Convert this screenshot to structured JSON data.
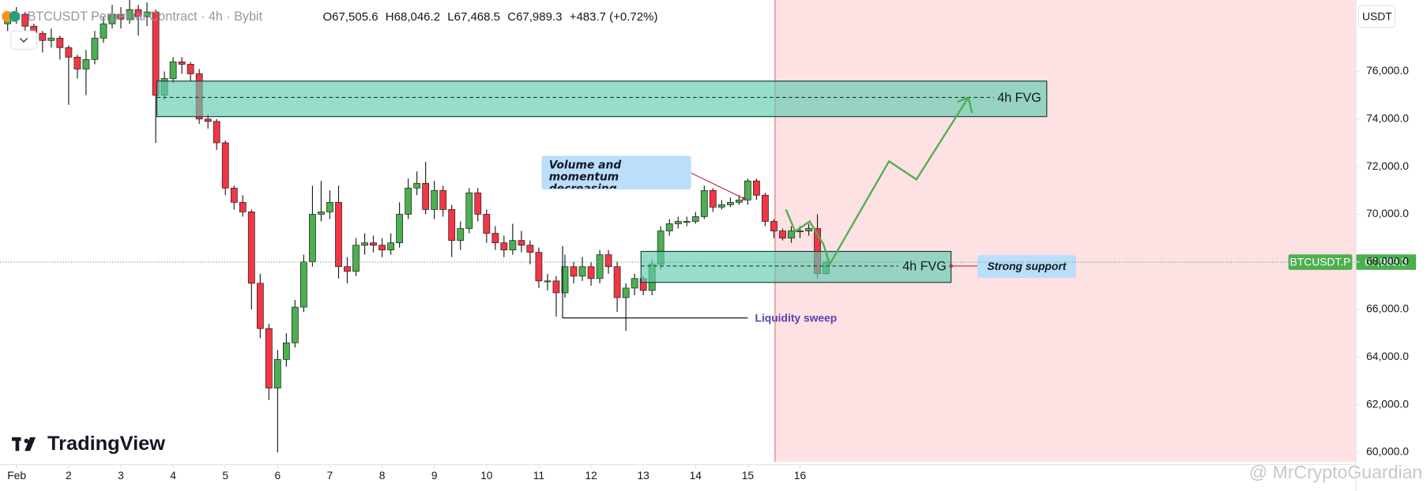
{
  "header": {
    "symbol": "BTCUSDT Perpetual Contract · 4h · Bybit",
    "ohlc": [
      {
        "key": "O",
        "value": "67,505.6"
      },
      {
        "key": "H",
        "value": "68,046.2"
      },
      {
        "key": "L",
        "value": "67,468.5"
      },
      {
        "key": "C",
        "value": "67,989.3"
      }
    ],
    "change": "+483.7 (+0.72%)",
    "currency": "USDT",
    "brand": "TradingView",
    "watermark": "@ MrCryptoGuardian"
  },
  "chart_data": {
    "type": "candlestick",
    "up_color": "#4caf50",
    "down_color": "#f23645",
    "grid": false,
    "x": [
      0.833,
      1,
      1.167,
      1.333,
      1.5,
      1.667,
      1.833,
      2,
      2.167,
      2.333,
      2.5,
      2.667,
      2.833,
      3,
      3.167,
      3.333,
      3.5,
      3.667,
      3.833,
      4,
      4.167,
      4.333,
      4.5,
      4.667,
      4.833,
      5,
      5.167,
      5.333,
      5.5,
      5.667,
      5.833,
      6,
      6.167,
      6.333,
      6.5,
      6.667,
      6.833,
      7,
      7.167,
      7.333,
      7.5,
      7.667,
      7.833,
      8,
      8.167,
      8.333,
      8.5,
      8.667,
      8.833,
      9,
      9.167,
      9.333,
      9.5,
      9.667,
      9.833,
      10,
      10.167,
      10.333,
      10.5,
      10.667,
      10.833,
      11,
      11.167,
      11.333,
      11.5,
      11.667,
      11.833,
      12,
      12.167,
      12.333,
      12.5,
      12.667,
      12.833,
      13,
      13.167,
      13.333,
      13.5,
      13.667,
      13.833,
      14,
      14.167,
      14.333,
      14.5,
      14.667,
      14.833,
      15,
      15.167,
      15.333,
      15.5,
      15.667,
      15.833,
      16,
      16.167,
      16.333,
      16.5
    ],
    "open": [
      78000,
      78200,
      78400,
      77900,
      77600,
      77300,
      77400,
      77000,
      76600,
      76100,
      76500,
      77400,
      78000,
      78400,
      78200,
      78600,
      78300,
      78500,
      75000,
      75700,
      76400,
      76300,
      75900,
      74000,
      73900,
      73000,
      71100,
      70500,
      70100,
      67100,
      65200,
      62700,
      63900,
      64600,
      66100,
      68000,
      70000,
      70100,
      70500,
      67800,
      67600,
      68700,
      68800,
      68700,
      68500,
      68800,
      70000,
      71100,
      71300,
      70200,
      71000,
      70200,
      68900,
      69400,
      70900,
      70000,
      69200,
      68800,
      68500,
      68900,
      68700,
      68400,
      67200,
      67200,
      66700,
      67800,
      67400,
      67800,
      67300,
      68300,
      67800,
      66500,
      66900,
      67300,
      66800,
      67900,
      69300,
      69600,
      69700,
      69700,
      69900,
      71000,
      70300,
      70400,
      70500,
      70600,
      71400,
      70800,
      69700,
      69300,
      69000,
      69300,
      69300,
      69400,
      67505.6
    ],
    "high": [
      78500,
      78700,
      78500,
      78000,
      77700,
      77800,
      77500,
      77100,
      76700,
      76900,
      77700,
      78300,
      78800,
      78700,
      79000,
      78800,
      78900,
      78600,
      76000,
      76600,
      76600,
      76400,
      76100,
      74200,
      74000,
      73100,
      71200,
      70800,
      70200,
      67500,
      65400,
      64300,
      65000,
      66400,
      68300,
      71200,
      71400,
      71000,
      71200,
      68200,
      69000,
      69200,
      69100,
      69000,
      69200,
      70500,
      71500,
      71800,
      72200,
      71400,
      71200,
      70400,
      69700,
      71100,
      71100,
      70200,
      69500,
      69100,
      69600,
      69300,
      68900,
      68600,
      67500,
      67400,
      68300,
      68000,
      68200,
      68000,
      68500,
      68500,
      68000,
      67100,
      67500,
      67400,
      68100,
      69500,
      69800,
      69900,
      69900,
      70100,
      71200,
      71100,
      70600,
      70700,
      70800,
      71500,
      71500,
      70900,
      69800,
      69400,
      69500,
      69500,
      69600,
      70000,
      68046.2
    ],
    "low": [
      77700,
      78000,
      77700,
      77300,
      76800,
      77000,
      76500,
      74600,
      75700,
      75000,
      76300,
      77200,
      77800,
      77800,
      78000,
      77500,
      77900,
      73000,
      74800,
      75500,
      75900,
      75600,
      73800,
      73600,
      72700,
      70800,
      70200,
      69900,
      66000,
      64800,
      62200,
      60000,
      63600,
      64400,
      65900,
      67800,
      69700,
      69800,
      67300,
      67100,
      67400,
      68300,
      68400,
      68200,
      68300,
      68600,
      69800,
      70800,
      70000,
      69800,
      69900,
      68200,
      68500,
      69200,
      69700,
      68800,
      68500,
      68200,
      68300,
      68400,
      67900,
      66900,
      66800,
      65700,
      66500,
      67100,
      67200,
      67000,
      67100,
      67500,
      65900,
      65100,
      66600,
      66600,
      66600,
      67700,
      69100,
      69400,
      69500,
      69600,
      69800,
      70100,
      70200,
      70300,
      70400,
      70400,
      70600,
      69500,
      69000,
      68900,
      68800,
      69000,
      69100,
      67300,
      67468.5
    ],
    "close": [
      78200,
      78400,
      77900,
      77600,
      77300,
      77400,
      77000,
      76600,
      76100,
      76500,
      77400,
      78000,
      78400,
      78200,
      78600,
      78300,
      78500,
      75000,
      75700,
      76400,
      76300,
      75900,
      74000,
      73900,
      73000,
      71100,
      70500,
      70100,
      67100,
      65200,
      62700,
      63900,
      64600,
      66100,
      68000,
      70000,
      70100,
      70500,
      67800,
      67600,
      68700,
      68800,
      68700,
      68500,
      68800,
      70000,
      71100,
      71300,
      70200,
      71000,
      70200,
      68900,
      69400,
      70900,
      70000,
      69200,
      68800,
      68500,
      68900,
      68700,
      68400,
      67200,
      67200,
      66700,
      67800,
      67400,
      67800,
      67300,
      68300,
      67800,
      66500,
      66900,
      67300,
      66800,
      67900,
      69300,
      69600,
      69700,
      69700,
      69900,
      71000,
      70300,
      70400,
      70500,
      70600,
      71400,
      70800,
      69700,
      69300,
      69000,
      69300,
      69300,
      69400,
      67505.6,
      67989.3
    ],
    "last_close_label": "67,989.3",
    "symbol_label": "BTCUSDT.P",
    "xlim": [
      0.686,
      26.64
    ],
    "ylim": [
      59600,
      79000
    ],
    "xticks": [
      {
        "value": 1,
        "label": "Feb"
      },
      2,
      3,
      4,
      5,
      6,
      7,
      8,
      9,
      10,
      11,
      12,
      13,
      14,
      15,
      16
    ],
    "yticks": [
      {
        "value": 60000,
        "label": "60,000.0"
      },
      {
        "value": 62000,
        "label": "62,000.0"
      },
      {
        "value": 64000,
        "label": "64,000.0"
      },
      {
        "value": 66000,
        "label": "66,000.0"
      },
      {
        "value": 68000,
        "label": "68,000.0"
      },
      {
        "value": 70000,
        "label": "70,000.0"
      },
      {
        "value": 72000,
        "label": "72,000.0"
      },
      {
        "value": 74000,
        "label": "74,000.0"
      },
      {
        "value": 76000,
        "label": "76,000.0"
      }
    ],
    "annotations": {
      "upper_zone": "4h FVG",
      "lower_zone": "4h FVG",
      "callout": "Volume and momentum decreasing",
      "support": "Strong support",
      "sweep": "Liquidity sweep"
    }
  }
}
